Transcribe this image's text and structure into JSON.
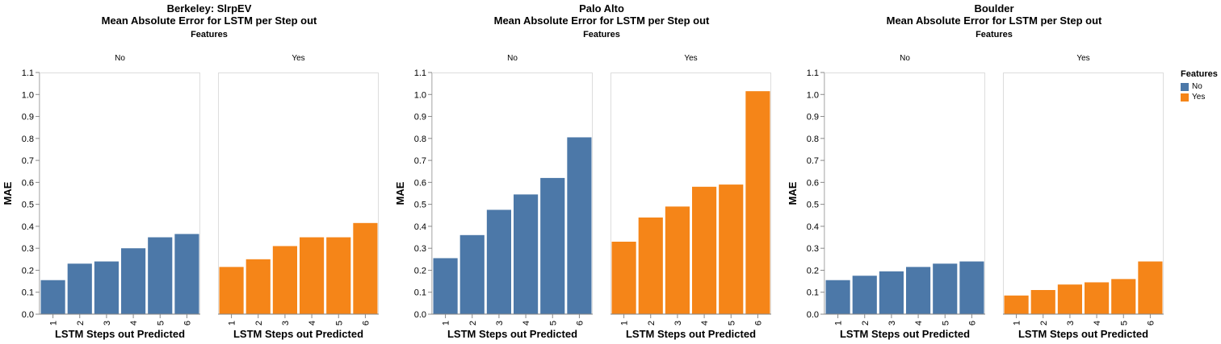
{
  "legend": {
    "title": "Features",
    "items": [
      {
        "label": "No",
        "color": "#4c78a8"
      },
      {
        "label": "Yes",
        "color": "#f58518"
      }
    ]
  },
  "chart_data": [
    {
      "type": "bar",
      "title": "Berkeley: SlrpEV",
      "subtitle": "Mean Absolute Error for LSTM per Step out",
      "facet_label": "Features",
      "xlabel": "LSTM Steps out Predicted",
      "ylabel": "MAE",
      "ylim": [
        0,
        1.1
      ],
      "yticks": [
        "0.0",
        "0.1",
        "0.2",
        "0.3",
        "0.4",
        "0.5",
        "0.6",
        "0.7",
        "0.8",
        "0.9",
        "1.0",
        "1.1"
      ],
      "categories": [
        "1",
        "2",
        "3",
        "4",
        "5",
        "6"
      ],
      "series": [
        {
          "name": "No",
          "color": "#4c78a8",
          "values": [
            0.155,
            0.23,
            0.24,
            0.3,
            0.35,
            0.365
          ]
        },
        {
          "name": "Yes",
          "color": "#f58518",
          "values": [
            0.215,
            0.25,
            0.31,
            0.35,
            0.35,
            0.415
          ]
        }
      ],
      "grid": false
    },
    {
      "type": "bar",
      "title": "Palo Alto",
      "subtitle": "Mean Absolute Error for LSTM per Step out",
      "facet_label": "Features",
      "xlabel": "LSTM Steps out Predicted",
      "ylabel": "MAE",
      "ylim": [
        0,
        1.1
      ],
      "yticks": [
        "0.0",
        "0.1",
        "0.2",
        "0.3",
        "0.4",
        "0.5",
        "0.6",
        "0.7",
        "0.8",
        "0.9",
        "1.0",
        "1.1"
      ],
      "categories": [
        "1",
        "2",
        "3",
        "4",
        "5",
        "6"
      ],
      "series": [
        {
          "name": "No",
          "color": "#4c78a8",
          "values": [
            0.255,
            0.36,
            0.475,
            0.545,
            0.62,
            0.805
          ]
        },
        {
          "name": "Yes",
          "color": "#f58518",
          "values": [
            0.33,
            0.44,
            0.49,
            0.58,
            0.59,
            1.015
          ]
        }
      ],
      "grid": false
    },
    {
      "type": "bar",
      "title": "Boulder",
      "subtitle": "Mean Absolute Error for LSTM per Step out",
      "facet_label": "Features",
      "xlabel": "LSTM Steps out Predicted",
      "ylabel": "MAE",
      "ylim": [
        0,
        1.1
      ],
      "yticks": [
        "0.0",
        "0.1",
        "0.2",
        "0.3",
        "0.4",
        "0.5",
        "0.6",
        "0.7",
        "0.8",
        "0.9",
        "1.0",
        "1.1"
      ],
      "categories": [
        "1",
        "2",
        "3",
        "4",
        "5",
        "6"
      ],
      "series": [
        {
          "name": "No",
          "color": "#4c78a8",
          "values": [
            0.155,
            0.175,
            0.195,
            0.215,
            0.23,
            0.24
          ]
        },
        {
          "name": "Yes",
          "color": "#f58518",
          "values": [
            0.085,
            0.11,
            0.135,
            0.145,
            0.16,
            0.24
          ]
        }
      ],
      "grid": false
    }
  ]
}
